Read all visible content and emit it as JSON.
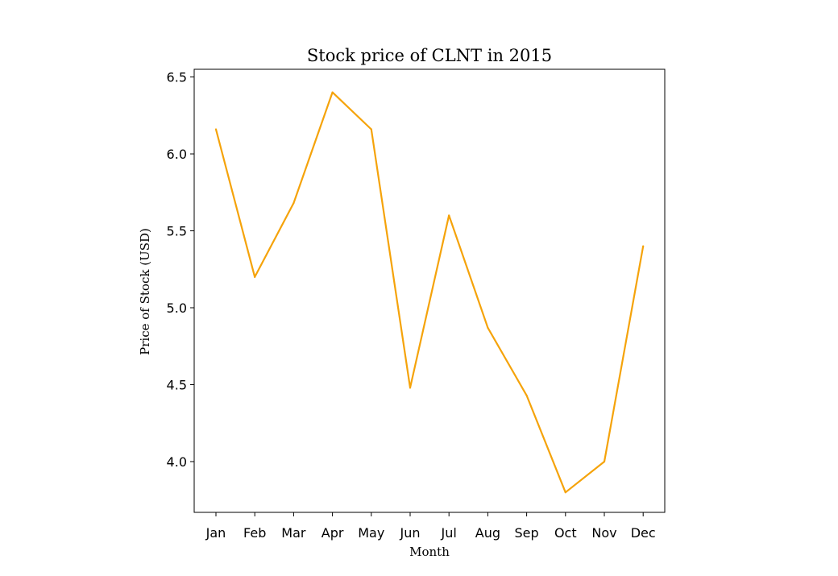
{
  "chart_data": {
    "type": "line",
    "title": "Stock price of CLNT in 2015",
    "xlabel": "Month",
    "ylabel": "Price of Stock (USD)",
    "categories": [
      "Jan",
      "Feb",
      "Mar",
      "Apr",
      "May",
      "Jun",
      "Jul",
      "Aug",
      "Sep",
      "Oct",
      "Nov",
      "Dec"
    ],
    "values": [
      6.16,
      5.2,
      5.68,
      6.4,
      6.16,
      4.48,
      5.6,
      4.87,
      4.43,
      3.8,
      4.0,
      5.4
    ],
    "ylim": [
      3.67,
      6.55
    ],
    "yticks": [
      "4.0",
      "4.5",
      "5.0",
      "5.5",
      "6.0",
      "6.5"
    ],
    "grid": false,
    "legend": "none",
    "line_color": "#f5a30a"
  }
}
